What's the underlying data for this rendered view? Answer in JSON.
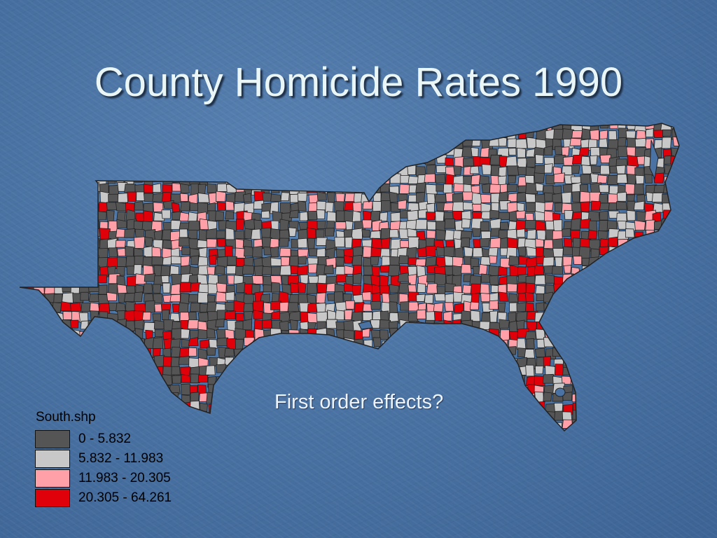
{
  "slide": {
    "title": "County Homicide Rates 1990",
    "subtitle": "First order effects?"
  },
  "legend": {
    "title": "South.shp",
    "classes": [
      {
        "label": "0 - 5.832",
        "color": "#555555"
      },
      {
        "label": "5.832 - 11.983",
        "color": "#c8c8c8"
      },
      {
        "label": "11.983 - 20.305",
        "color": "#ffa0a8"
      },
      {
        "label": "20.305 - 64.261",
        "color": "#e0000a"
      }
    ]
  },
  "map": {
    "type": "choropleth",
    "region": "Southern United States counties",
    "variable": "homicide rate 1990",
    "county_border_color": "#222222"
  }
}
